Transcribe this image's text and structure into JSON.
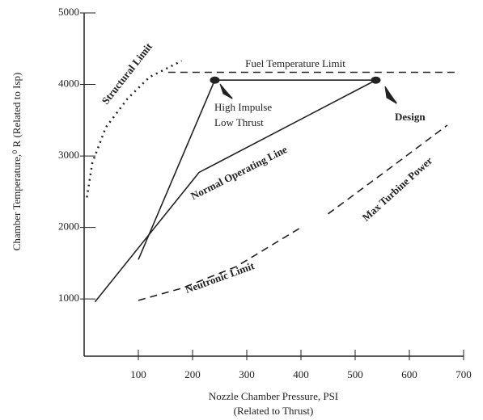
{
  "chart_data": {
    "type": "line",
    "y_label": "Chamber Temperature,⁰ R  (Related to Isp)",
    "x_label": [
      "Nozzle Chamber Pressure, PSI",
      "(Related to Thrust)"
    ],
    "xlim": [
      0,
      700
    ],
    "xticks": [
      100,
      200,
      300,
      400,
      500,
      600,
      700
    ],
    "ylim": [
      200,
      5000
    ],
    "yticks": [
      1000,
      2000,
      3000,
      4000,
      5000
    ],
    "color": "#222",
    "series": [
      {
        "name": "Structural Limit",
        "style": "dotted",
        "x": [
          5,
          15,
          40,
          80,
          120,
          180
        ],
        "values": [
          2420,
          2900,
          3400,
          3800,
          4100,
          4330
        ]
      },
      {
        "name": "Fuel Temperature Limit",
        "style": "dashed",
        "x": [
          155,
          690
        ],
        "values": [
          4170,
          4170
        ]
      },
      {
        "name": "Normal Operating Line",
        "style": "solid",
        "x": [
          20,
          212,
          538
        ],
        "values": [
          960,
          2770,
          4060
        ]
      },
      {
        "style": "solid",
        "x": [
          100,
          241,
          538
        ],
        "values": [
          1550,
          4060,
          4060
        ]
      },
      {
        "name": "Neutronic Limit",
        "style": "dashed",
        "x": [
          100,
          180,
          280,
          400
        ],
        "values": [
          980,
          1150,
          1450,
          2000
        ]
      },
      {
        "name": "Max Turbine Power",
        "style": "dashed",
        "x": [
          450,
          550,
          670
        ],
        "values": [
          2190,
          2750,
          3430
        ]
      }
    ],
    "points": [
      {
        "label": [
          "High Impulse",
          "Low Thrust"
        ],
        "x": 241,
        "y": 4060
      },
      {
        "label": [
          "Design"
        ],
        "x": 538,
        "y": 4060
      }
    ]
  }
}
